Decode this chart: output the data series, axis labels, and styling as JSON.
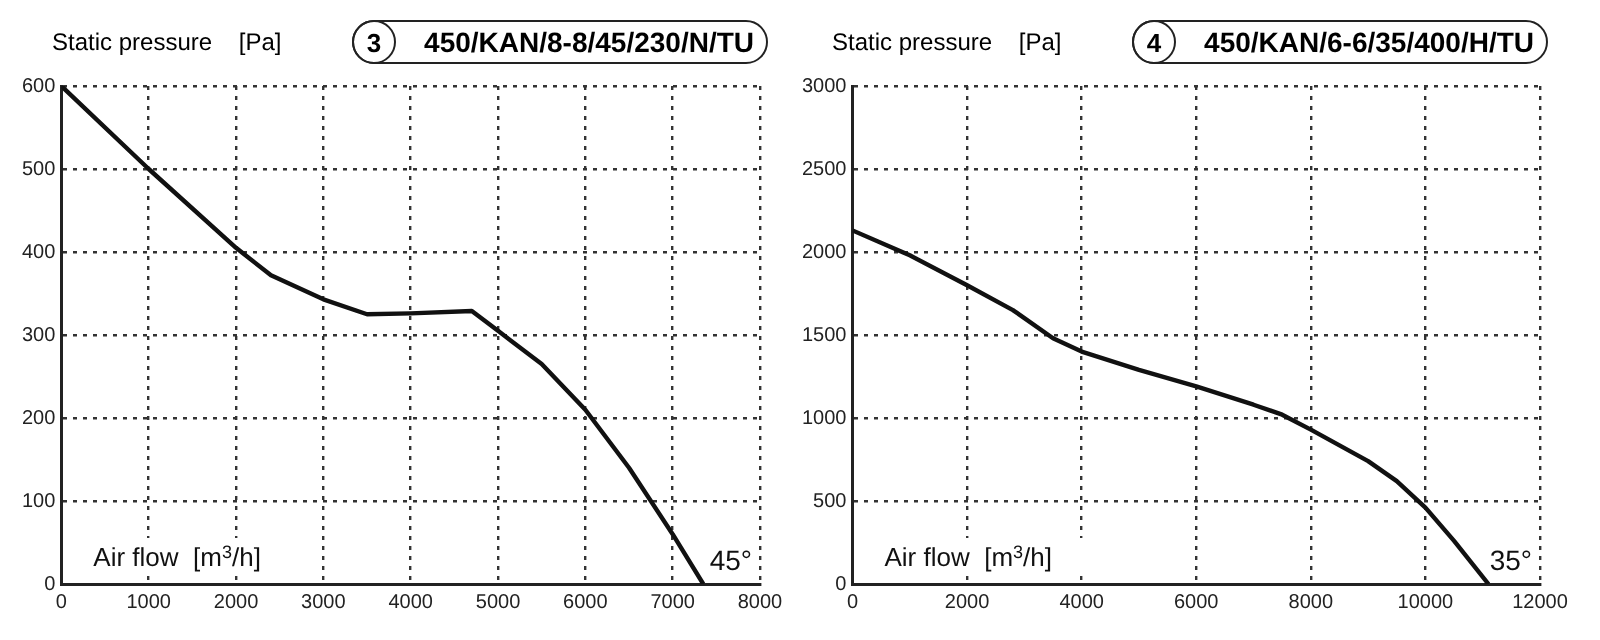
{
  "chart_data": [
    {
      "type": "line",
      "title": "450/KAN/8-8/45/230/N/TU",
      "subtitle": "3",
      "ylabel": "Static pressure    [Pa]",
      "xlabel": "Air flow  [m$^{3}$/h]",
      "annotations": [
        "45°"
      ],
      "series": [
        {
          "color": "#111111",
          "x": [
            0,
            1000,
            2000,
            2400,
            3000,
            3500,
            4000,
            4700,
            5000,
            5500,
            6000,
            6500,
            7000,
            7350
          ],
          "values": [
            600,
            500,
            405,
            372,
            343,
            325,
            326,
            329,
            305,
            265,
            210,
            140,
            60,
            0
          ]
        }
      ],
      "xlim": [
        0,
        8000
      ],
      "xticks": [
        0,
        1000,
        2000,
        3000,
        4000,
        5000,
        6000,
        7000,
        8000
      ],
      "ylim": [
        0,
        600
      ],
      "yticks": [
        0,
        100,
        200,
        300,
        400,
        500,
        600
      ],
      "grid": true,
      "legend": false,
      "marker": "none",
      "line_style": "solid"
    },
    {
      "type": "line",
      "title": "450/KAN/6-6/35/400/H/TU",
      "subtitle": "4",
      "ylabel": "Static pressure    [Pa]",
      "xlabel": "Air flow  [m$^{3}$/h]",
      "annotations": [
        "35°"
      ],
      "series": [
        {
          "color": "#111111",
          "x": [
            0,
            1000,
            2000,
            2800,
            3500,
            4000,
            5000,
            6000,
            7000,
            7500,
            8000,
            9000,
            9500,
            10000,
            10500,
            11100
          ],
          "values": [
            2130,
            1980,
            1800,
            1650,
            1480,
            1400,
            1290,
            1190,
            1080,
            1020,
            930,
            740,
            620,
            460,
            260,
            0
          ]
        }
      ],
      "xlim": [
        0,
        12000
      ],
      "xticks": [
        0,
        2000,
        4000,
        6000,
        8000,
        10000,
        12000
      ],
      "ylim": [
        0,
        3000
      ],
      "yticks": [
        0,
        500,
        1000,
        1500,
        2000,
        2500,
        3000
      ],
      "grid": true,
      "legend": false,
      "marker": "none",
      "line_style": "solid"
    }
  ]
}
